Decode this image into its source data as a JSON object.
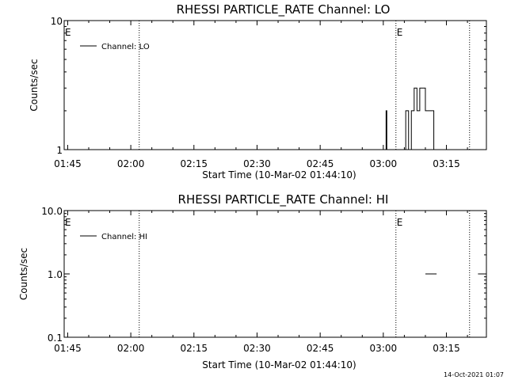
{
  "chart_data": [
    {
      "type": "line",
      "title": "RHESSI PARTICLE_RATE Channel: LO",
      "xlabel": "Start Time (10-Mar-02 01:44:10)",
      "ylabel": "Counts/sec",
      "y_scale": "log",
      "xlim": [
        "01:44:10",
        "03:24:30"
      ],
      "ylim": [
        1,
        10
      ],
      "x_ticks": [
        "01:45",
        "02:00",
        "02:15",
        "02:30",
        "02:45",
        "03:00",
        "03:15"
      ],
      "y_ticks": [
        "1",
        "10"
      ],
      "legend": "top-left",
      "grid": false,
      "series": [
        {
          "name": "Channel: LO",
          "x": [
            "03:00:20",
            "03:00:40",
            "03:00:50",
            "03:01:00",
            "03:01:20",
            "03:04:50",
            "03:05:20",
            "03:05:40",
            "03:06:00",
            "03:06:20",
            "03:06:40",
            "03:07:00",
            "03:07:20",
            "03:07:40",
            "03:08:00",
            "03:08:20",
            "03:08:40",
            "03:09:00",
            "03:09:20",
            "03:09:40",
            "03:10:00",
            "03:10:20",
            "03:10:40",
            "03:11:00",
            "03:11:20",
            "03:11:40",
            "03:12:00",
            "03:12:20",
            "03:12:40",
            "03:13:00",
            "03:13:20",
            "03:13:40",
            "03:14:00"
          ],
          "y": [
            1,
            2,
            1,
            1,
            1,
            1,
            2,
            2,
            1,
            1,
            2,
            2,
            3,
            3,
            2,
            2,
            3,
            3,
            3,
            3,
            2,
            2,
            2,
            2,
            2,
            2,
            1,
            1,
            1,
            1,
            1,
            1,
            1
          ]
        }
      ],
      "vlines": [
        "02:02:00",
        "03:03:00",
        "03:20:30"
      ],
      "event_markers": [
        {
          "label": "E",
          "x": "01:44:10"
        },
        {
          "label": "E",
          "x": "03:03:00"
        }
      ]
    },
    {
      "type": "line",
      "title": "RHESSI PARTICLE_RATE Channel: HI",
      "xlabel": "Start Time (10-Mar-02 01:44:10)",
      "ylabel": "Counts/sec",
      "y_scale": "log",
      "xlim": [
        "01:44:10",
        "03:24:30"
      ],
      "ylim": [
        0.1,
        10
      ],
      "x_ticks": [
        "01:45",
        "02:00",
        "02:15",
        "02:30",
        "02:45",
        "03:00",
        "03:15"
      ],
      "y_ticks": [
        "0.1",
        "1.0",
        "10.0"
      ],
      "legend": "top-left",
      "grid": false,
      "series": [
        {
          "name": "Channel: HI",
          "segments": [
            {
              "x": [
                "03:10:00",
                "03:12:40"
              ],
              "y": [
                1,
                1
              ]
            },
            {
              "x": [
                "03:22:30",
                "03:24:30"
              ],
              "y": [
                1,
                1
              ]
            }
          ]
        }
      ],
      "vlines": [
        "02:02:00",
        "03:03:00",
        "03:20:30"
      ],
      "event_markers": [
        {
          "label": "E",
          "x": "01:44:10"
        },
        {
          "label": "E",
          "x": "03:03:00"
        }
      ]
    }
  ],
  "footer": {
    "timestamp": "14-Oct-2021 01:07"
  }
}
